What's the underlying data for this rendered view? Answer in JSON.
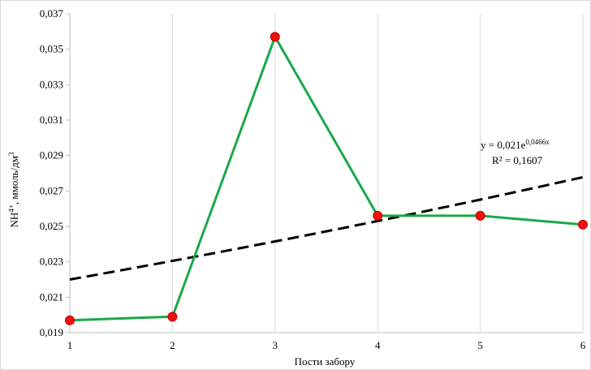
{
  "chart_data": {
    "type": "line",
    "title": "",
    "xlabel": "Пости забору",
    "ylabel": "NH",
    "ylabel_sup": "4+",
    "ylabel_unit": ", ммоль/дм",
    "ylabel_unit_sup": "3",
    "x": [
      1,
      2,
      3,
      4,
      5,
      6
    ],
    "xlim": [
      1,
      6
    ],
    "ylim": [
      0.019,
      0.037
    ],
    "y_ticks": [
      "0,019",
      "0,021",
      "0,023",
      "0,025",
      "0,027",
      "0,029",
      "0,031",
      "0,033",
      "0,035",
      "0,037"
    ],
    "x_ticks": [
      "1",
      "2",
      "3",
      "4",
      "5",
      "6"
    ],
    "grid": "vertical",
    "series": [
      {
        "values": [
          0.0197,
          0.0199,
          0.0357,
          0.0256,
          0.0256,
          0.0251
        ],
        "line_color": "#1aa84a",
        "marker_color": "#ee1111"
      }
    ],
    "trendline": {
      "type": "exponential",
      "a": 0.021,
      "b": 0.0466,
      "color": "#000000",
      "style": "dashed",
      "equation_prefix": "y = 0,021e",
      "equation_exp": "0,0466x",
      "r2_text": "R² = 0,1607"
    }
  }
}
